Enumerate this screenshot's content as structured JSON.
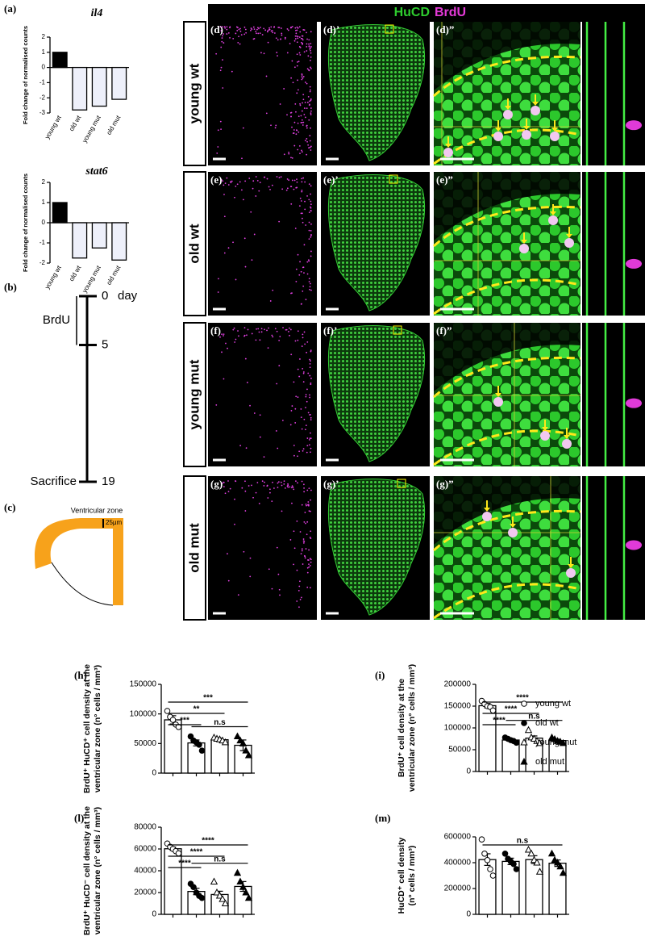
{
  "chart_data": [
    {
      "type": "bar",
      "panel": "(a)",
      "title": "il4",
      "ylabel": "Fold change of normalised counts",
      "categories": [
        "young wt",
        "old wt",
        "young mut",
        "old mut"
      ],
      "values": [
        1,
        -2.8,
        -2.55,
        -2.1
      ],
      "colors": [
        "#000000",
        "#eef0fa",
        "#eef0fa",
        "#eef0fa"
      ],
      "ylim": [
        -3,
        2
      ],
      "yticks": [
        2,
        1,
        0,
        -1,
        -2,
        -3
      ]
    },
    {
      "type": "bar",
      "title": "stat6",
      "ylabel": "Fold change of normalised counts",
      "categories": [
        "young wt",
        "old wt",
        "young mut",
        "old mut"
      ],
      "values": [
        1,
        -1.75,
        -1.25,
        -1.85
      ],
      "colors": [
        "#000000",
        "#eef0fa",
        "#eef0fa",
        "#eef0fa"
      ],
      "ylim": [
        -2,
        2
      ],
      "yticks": [
        2,
        1,
        0,
        -1,
        -2
      ]
    },
    {
      "type": "bar",
      "panel": "(h)",
      "ylabel": [
        "BrdU⁺ HuCD⁺ cell density at the",
        "ventricular zone (n° cells / mm³)"
      ],
      "values": [
        90000,
        51000,
        56400,
        47000
      ],
      "errors": [
        7000,
        5000,
        2500,
        9000
      ],
      "points": [
        [
          105000,
          95000,
          90000,
          82000,
          78000
        ],
        [
          62000,
          55000,
          52000,
          48000,
          38000
        ],
        [
          60000,
          58000,
          57000,
          55000,
          52000
        ],
        [
          62000,
          55000,
          50000,
          38000,
          30000
        ]
      ],
      "ylim": [
        0,
        150000
      ],
      "yticks": [
        0,
        50000,
        100000,
        150000
      ],
      "significance": [
        "***",
        "**",
        "***",
        "n.s"
      ]
    },
    {
      "type": "bar",
      "panel": "(i)",
      "ylabel": [
        "BrdU⁺ cell density at the",
        "ventricular zone (n° cells / mm³)"
      ],
      "values": [
        151000,
        72200,
        76600,
        71000
      ],
      "errors": [
        5000,
        3000,
        5000,
        3000
      ],
      "points": [
        [
          162000,
          155000,
          150000,
          148000,
          140000
        ],
        [
          78000,
          75000,
          72000,
          70000,
          66000
        ],
        [
          95000,
          78000,
          75000,
          70000,
          65000
        ],
        [
          78000,
          74000,
          70000,
          68000,
          65000
        ]
      ],
      "ylim": [
        0,
        200000
      ],
      "yticks": [
        0,
        50000,
        100000,
        150000,
        200000
      ],
      "significance": [
        "****",
        "****",
        "****",
        "n.s"
      ]
    },
    {
      "type": "bar",
      "panel": "(l)",
      "ylabel": [
        "BrdU⁺ HuCD⁻ cell density at the",
        "ventricular zone (n° cells / mm³)"
      ],
      "values": [
        60200,
        21000,
        18200,
        25600
      ],
      "errors": [
        1500,
        3000,
        3000,
        4500
      ],
      "points": [
        [
          65000,
          62000,
          60000,
          58000,
          56000
        ],
        [
          28000,
          25000,
          20000,
          17000,
          15000
        ],
        [
          30000,
          20000,
          17000,
          14000,
          10000
        ],
        [
          38000,
          30000,
          25000,
          20000,
          15000
        ]
      ],
      "ylim": [
        0,
        80000
      ],
      "yticks": [
        0,
        20000,
        40000,
        60000,
        80000
      ],
      "significance": [
        "****",
        "****",
        "****",
        "n.s"
      ]
    },
    {
      "type": "bar",
      "panel": "(m)",
      "ylabel": [
        "HuCD⁺ cell density",
        "(n° cells / mm³)"
      ],
      "values": [
        424000,
        410000,
        424000,
        396000
      ],
      "errors": [
        45000,
        25000,
        30000,
        25000
      ],
      "points": [
        [
          580000,
          470000,
          420000,
          350000,
          300000
        ],
        [
          470000,
          430000,
          410000,
          390000,
          350000
        ],
        [
          500000,
          470000,
          420000,
          400000,
          330000
        ],
        [
          470000,
          420000,
          400000,
          370000,
          320000
        ]
      ],
      "ylim": [
        0,
        600000
      ],
      "yticks": [
        0,
        200000,
        400000,
        600000
      ],
      "significance": [
        "n.s"
      ]
    }
  ],
  "legend": [
    "young wt",
    "old wt",
    "young mut",
    "old mut"
  ],
  "timeline": {
    "panel": "(b)",
    "unit": "day",
    "ticks": [
      0,
      5,
      19
    ],
    "pulse": "BrdU",
    "end": "Sacrifice"
  },
  "diagram": {
    "panel": "(c)",
    "zone": "Ventricular zone",
    "scale": "25µm"
  },
  "micrographs": {
    "header": [
      "HuCD",
      "BrdU"
    ],
    "rows": [
      {
        "label": "young wt",
        "panels": [
          "(d)",
          "(d)’",
          "(d)”"
        ]
      },
      {
        "label": "old wt",
        "panels": [
          "(e)",
          "(e)’",
          "(e)”"
        ]
      },
      {
        "label": "young mut",
        "panels": [
          "(f)",
          "(f)’",
          "(f)”"
        ]
      },
      {
        "label": "old mut",
        "panels": [
          "(g)",
          "(g)’",
          "(g)”"
        ]
      }
    ]
  }
}
